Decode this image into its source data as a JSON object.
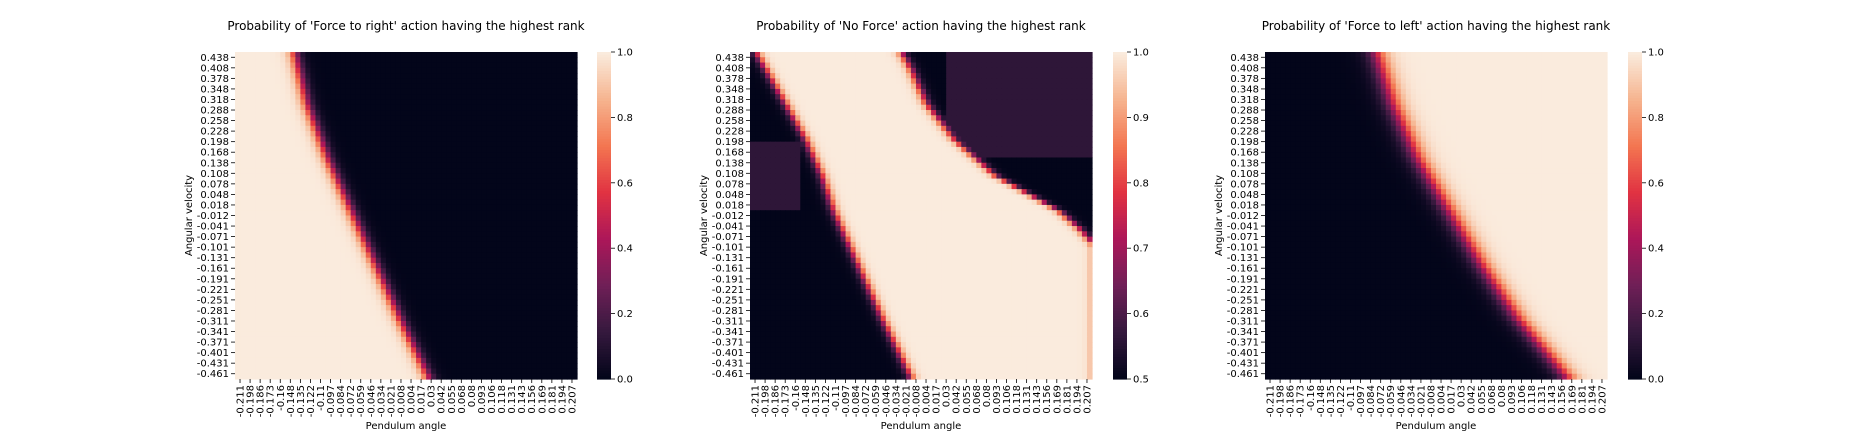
{
  "palette": [
    "#03051a",
    "#36193e",
    "#701f57",
    "#ad1759",
    "#e13342",
    "#f37651",
    "#f6b48f",
    "#faebdd"
  ],
  "chart_data": [
    {
      "type": "heatmap",
      "title": "Probability of 'Force to right' action having the highest rank",
      "xlabel": "Pendulum angle",
      "ylabel": "Angular velocity",
      "colorbar": {
        "range": [
          0.0,
          1.0
        ],
        "ticks": [
          "0.0",
          "0.2",
          "0.4",
          "0.6",
          "0.8",
          "1.0"
        ]
      },
      "x_ticks": [
        "-0.211",
        "-0.198",
        "-0.186",
        "-0.173",
        "-0.16",
        "-0.148",
        "-0.135",
        "-0.122",
        "-0.11",
        "-0.097",
        "-0.084",
        "-0.072",
        "-0.059",
        "-0.046",
        "-0.034",
        "-0.021",
        "-0.008",
        "0.004",
        "0.017",
        "0.03",
        "0.042",
        "0.055",
        "0.068",
        "0.08",
        "0.093",
        "0.106",
        "0.118",
        "0.131",
        "0.143",
        "0.156",
        "0.169",
        "0.181",
        "0.194",
        "0.207"
      ],
      "y_ticks": [
        "0.438",
        "0.408",
        "0.378",
        "0.348",
        "0.318",
        "0.288",
        "0.258",
        "0.228",
        "0.198",
        "0.168",
        "0.138",
        "0.108",
        "0.078",
        "0.048",
        "0.018",
        "-0.012",
        "-0.041",
        "-0.071",
        "-0.101",
        "-0.131",
        "-0.161",
        "-0.191",
        "-0.221",
        "-0.251",
        "-0.281",
        "-0.311",
        "-0.341",
        "-0.371",
        "-0.401",
        "-0.431",
        "-0.461"
      ],
      "boundaries": [
        {
          "velocity": [
            0.438,
            0.3,
            0.15,
            0.0,
            -0.15,
            -0.3,
            -0.461
          ],
          "angle": [
            -0.14,
            -0.125,
            -0.1,
            -0.07,
            -0.04,
            -0.01,
            0.025
          ],
          "width": 0.018,
          "side": "left",
          "low": 0.0,
          "high": 1.0
        }
      ]
    },
    {
      "type": "heatmap",
      "title": "Probability of 'No Force' action having the highest rank",
      "xlabel": "Pendulum angle",
      "ylabel": "Angular velocity",
      "colorbar": {
        "range": [
          0.5,
          1.0
        ],
        "ticks": [
          "0.5",
          "0.6",
          "0.7",
          "0.8",
          "0.9",
          "1.0"
        ]
      },
      "x_ticks": [
        "-0.211",
        "-0.198",
        "-0.186",
        "-0.173",
        "-0.16",
        "-0.148",
        "-0.135",
        "-0.122",
        "-0.11",
        "-0.097",
        "-0.084",
        "-0.072",
        "-0.059",
        "-0.046",
        "-0.034",
        "-0.021",
        "-0.008",
        "0.004",
        "0.017",
        "0.03",
        "0.042",
        "0.055",
        "0.068",
        "0.08",
        "0.093",
        "0.106",
        "0.118",
        "0.131",
        "0.143",
        "0.156",
        "0.169",
        "0.181",
        "0.194",
        "0.207"
      ],
      "y_ticks": [
        "0.438",
        "0.408",
        "0.378",
        "0.348",
        "0.318",
        "0.288",
        "0.258",
        "0.228",
        "0.198",
        "0.168",
        "0.138",
        "0.108",
        "0.078",
        "0.048",
        "0.018",
        "-0.012",
        "-0.041",
        "-0.071",
        "-0.101",
        "-0.131",
        "-0.161",
        "-0.191",
        "-0.221",
        "-0.251",
        "-0.281",
        "-0.311",
        "-0.341",
        "-0.371",
        "-0.401",
        "-0.431",
        "-0.461"
      ],
      "boundaries": [
        {
          "velocity": [
            0.438,
            0.3,
            0.2,
            0.1,
            0.0,
            -0.15,
            -0.3,
            -0.461
          ],
          "angle": [
            -0.205,
            -0.17,
            -0.145,
            -0.125,
            -0.11,
            -0.08,
            -0.05,
            -0.015
          ],
          "width": 0.014,
          "side": "right",
          "low": 0.5,
          "high": 1.0
        },
        {
          "velocity": [
            0.438,
            0.4,
            0.3,
            0.2,
            0.1,
            0.0,
            -0.05,
            -0.1
          ],
          "angle": [
            -0.025,
            -0.015,
            0.005,
            0.04,
            0.09,
            0.17,
            0.195,
            0.215
          ],
          "width": 0.014,
          "side": "left",
          "low": 0.5,
          "high": 1.0
        }
      ],
      "dark_zones": [
        {
          "velocity": [
            0.2,
            0.0
          ],
          "angle": [
            -0.211,
            -0.15
          ],
          "value": 0.56
        },
        {
          "velocity": [
            0.438,
            0.15
          ],
          "angle": [
            0.03,
            0.207
          ],
          "value": 0.56
        }
      ]
    },
    {
      "type": "heatmap",
      "title": "Probability of 'Force to left' action having the highest rank",
      "xlabel": "Pendulum angle",
      "ylabel": "Angular velocity",
      "colorbar": {
        "range": [
          0.0,
          1.0
        ],
        "ticks": [
          "0.0",
          "0.2",
          "0.4",
          "0.6",
          "0.8",
          "1.0"
        ]
      },
      "x_ticks": [
        "-0.211",
        "-0.198",
        "-0.186",
        "-0.173",
        "-0.16",
        "-0.148",
        "-0.135",
        "-0.122",
        "-0.11",
        "-0.097",
        "-0.084",
        "-0.072",
        "-0.059",
        "-0.046",
        "-0.034",
        "-0.021",
        "-0.008",
        "0.004",
        "0.017",
        "0.03",
        "0.042",
        "0.055",
        "0.068",
        "0.08",
        "0.093",
        "0.106",
        "0.118",
        "0.131",
        "0.143",
        "0.156",
        "0.169",
        "0.181",
        "0.194",
        "0.207"
      ],
      "y_ticks": [
        "0.438",
        "0.408",
        "0.378",
        "0.348",
        "0.318",
        "0.288",
        "0.258",
        "0.228",
        "0.198",
        "0.168",
        "0.138",
        "0.108",
        "0.078",
        "0.048",
        "0.018",
        "-0.012",
        "-0.041",
        "-0.071",
        "-0.101",
        "-0.131",
        "-0.161",
        "-0.191",
        "-0.221",
        "-0.251",
        "-0.281",
        "-0.311",
        "-0.341",
        "-0.371",
        "-0.401",
        "-0.431",
        "-0.461"
      ],
      "boundaries": [
        {
          "velocity": [
            0.438,
            0.3,
            0.15,
            0.0,
            -0.15,
            -0.3,
            -0.461
          ],
          "angle": [
            -0.075,
            -0.055,
            -0.025,
            0.015,
            0.055,
            0.1,
            0.16
          ],
          "width": 0.03,
          "side": "right",
          "low": 0.0,
          "high": 1.0
        }
      ]
    }
  ]
}
